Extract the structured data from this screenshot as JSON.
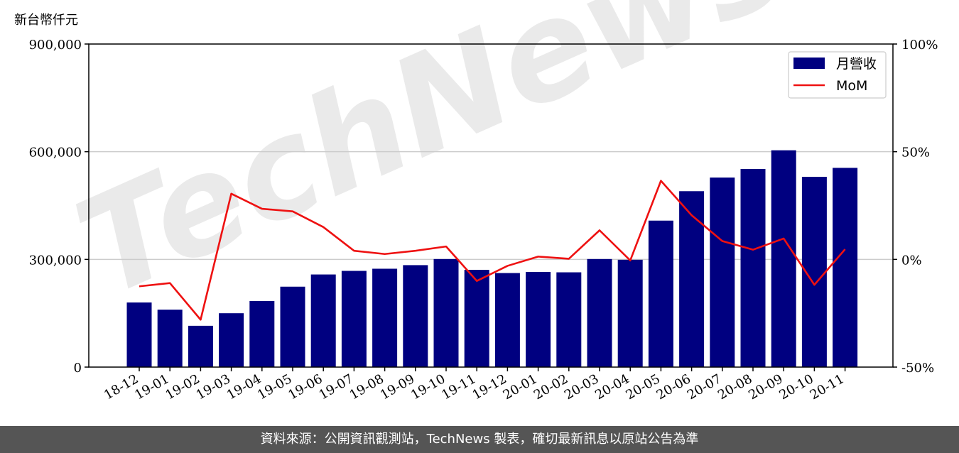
{
  "chart_data": {
    "type": "bar",
    "y_unit_label": "新台幣仟元",
    "categories": [
      "18-12",
      "19-01",
      "19-02",
      "19-03",
      "19-04",
      "19-05",
      "19-06",
      "19-07",
      "19-08",
      "19-09",
      "19-10",
      "19-11",
      "19-12",
      "20-01",
      "20-02",
      "20-03",
      "20-04",
      "20-05",
      "20-06",
      "20-07",
      "20-08",
      "20-09",
      "20-10",
      "20-11"
    ],
    "series": [
      {
        "name": "月營收",
        "type": "bar",
        "axis": "left",
        "color": "#000080",
        "values": [
          180000,
          160000,
          115000,
          150000,
          184000,
          224000,
          258000,
          268000,
          274000,
          284000,
          301000,
          271000,
          262000,
          265000,
          264000,
          301000,
          299000,
          408000,
          490000,
          528000,
          552000,
          604000,
          530000,
          555000
        ]
      },
      {
        "name": "MoM",
        "type": "line",
        "axis": "right",
        "color": "#ee1111",
        "values": [
          -12.5,
          -11,
          -28,
          30.5,
          23.5,
          22.3,
          15,
          4,
          2.5,
          4,
          6,
          -10,
          -3,
          1.3,
          0.3,
          13.5,
          -0.5,
          36.5,
          20.5,
          8.5,
          4.5,
          9.7,
          -11.8,
          4.7
        ]
      }
    ],
    "left_axis": {
      "ylim": [
        0,
        900000
      ],
      "ticks": [
        0,
        300000,
        600000,
        900000
      ],
      "tick_labels": [
        "0",
        "300,000",
        "600,000",
        "900,000"
      ]
    },
    "right_axis": {
      "ylim": [
        -50,
        100
      ],
      "ticks": [
        -50,
        0,
        50,
        100
      ],
      "tick_labels": [
        "-50%",
        "0%",
        "50%",
        "100%"
      ]
    },
    "grid": "horizontal",
    "legend_position": "top-right"
  },
  "watermark": {
    "text": "TechNews"
  },
  "footer": {
    "text": "資料來源：公開資訊觀測站，TechNews 製表，確切最新訊息以原站公告為準"
  }
}
